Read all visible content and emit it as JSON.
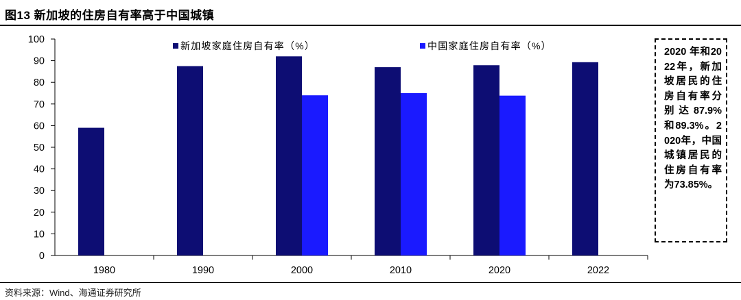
{
  "header": {
    "title": "图13 新加坡的住房自有率高于中国城镇"
  },
  "footer": {
    "source": "资料来源：Wind、海通证券研究所"
  },
  "note": {
    "text": "2020 年和2022年，新加坡居民的住房自有率分别达87.9%和89.3%。2020年，中国城镇居民的住房自有率为73.85%。"
  },
  "colors": {
    "singapore": "#0d0d73",
    "china": "#1a1aff"
  },
  "chart_data": {
    "type": "bar",
    "categories": [
      "1980",
      "1990",
      "2000",
      "2010",
      "2020",
      "2022"
    ],
    "series": [
      {
        "name": "新加坡家庭住房自有率（%）",
        "values": [
          59,
          87.5,
          92,
          87,
          87.9,
          89.3
        ]
      },
      {
        "name": "中国家庭住房自有率（%）",
        "values": [
          null,
          null,
          74,
          75,
          73.85,
          null
        ]
      }
    ],
    "yticks": [
      "0",
      "10",
      "20",
      "30",
      "40",
      "50",
      "60",
      "70",
      "80",
      "90",
      "100"
    ],
    "ylim": [
      0,
      100
    ],
    "legend": "top-inside",
    "grid": false
  }
}
